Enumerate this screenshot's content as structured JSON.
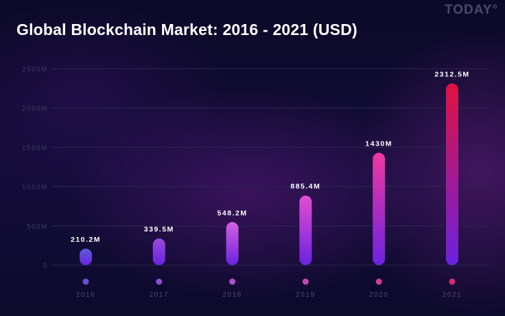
{
  "header": {
    "title": "Global Blockchain Market: 2016 - 2021 (USD)",
    "brand": "TODAY°"
  },
  "chart_data": {
    "type": "bar",
    "title": "Global Blockchain Market: 2016 - 2021 (USD)",
    "xlabel": "",
    "ylabel": "",
    "categories": [
      "2016",
      "2017",
      "2018",
      "2019",
      "2020",
      "2021"
    ],
    "values": [
      210.2,
      339.5,
      548.2,
      885.4,
      1430,
      2312.5
    ],
    "value_labels": [
      "210.2M",
      "339.5M",
      "548.2M",
      "885.4M",
      "1430M",
      "2312.5M"
    ],
    "yticks": [
      0,
      500,
      1000,
      1500,
      2000,
      2500
    ],
    "ytick_labels": [
      "0",
      "500M",
      "1000M",
      "1500M",
      "2000M",
      "2500M"
    ],
    "ylim": [
      0,
      2500
    ],
    "grid": true,
    "legend": "none",
    "colors": {
      "bar_bottom": "#6a22e0",
      "bar_tops": [
        "#5b5cd6",
        "#9a4bdc",
        "#d760e0",
        "#e24fd2",
        "#f0389e",
        "#e0123f"
      ],
      "dots": [
        "#6a4fd0",
        "#8d4fd2",
        "#b04fd0",
        "#c548b8",
        "#d03c96",
        "#d62d6e"
      ],
      "grid": "#2a2850",
      "background": "#0c0a2a"
    }
  }
}
